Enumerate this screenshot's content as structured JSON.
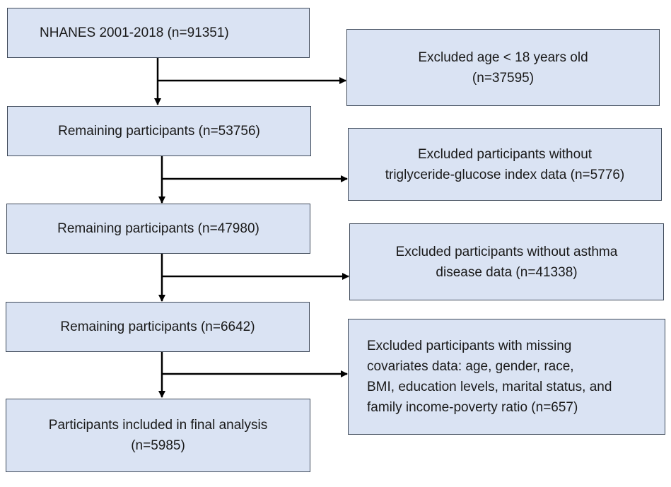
{
  "flow": {
    "main": [
      {
        "lines": [
          "NHANES 2001-2018 (n=91351)"
        ]
      },
      {
        "lines": [
          "Remaining participants (n=53756)"
        ]
      },
      {
        "lines": [
          "Remaining participants (n=47980)"
        ]
      },
      {
        "lines": [
          "Remaining participants (n=6642)"
        ]
      },
      {
        "lines": [
          "Participants included in final analysis",
          "(n=5985)"
        ]
      }
    ],
    "exclusions": [
      {
        "lines": [
          "Excluded age < 18 years old",
          "(n=37595)"
        ]
      },
      {
        "lines": [
          "Excluded participants without",
          "triglyceride-glucose index data (n=5776)"
        ]
      },
      {
        "lines": [
          "Excluded participants without asthma",
          "disease data (n=41338)"
        ]
      },
      {
        "lines": [
          "Excluded participants with missing",
          "covariates data: age, gender, race,",
          "BMI, education levels, marital status, and",
          "family income-poverty ratio (n=657)"
        ]
      }
    ]
  },
  "colors": {
    "box_fill": "#dae3f3",
    "box_border": "#3f4a5a",
    "arrow": "#000000"
  }
}
